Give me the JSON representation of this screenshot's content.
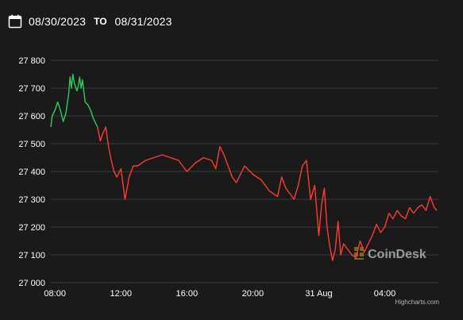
{
  "date_range": {
    "from": "08/30/2023",
    "to_label": "TO",
    "to": "08/31/2023",
    "icon": "calendar-icon"
  },
  "watermark": "CoinDesk",
  "credits": "Highcharts.com",
  "colors": {
    "background": "#1a1a1a",
    "gridline": "#3a3a3a",
    "up": "#2ecc5c",
    "down": "#ff3b30",
    "text": "#ffffff",
    "watermark_logo": "#c9a227"
  },
  "chart_data": {
    "type": "line",
    "title": "",
    "xlabel": "",
    "ylabel": "",
    "ylim": [
      27000,
      27800
    ],
    "yticks": [
      27000,
      27100,
      27200,
      27300,
      27400,
      27500,
      27600,
      27700,
      27800
    ],
    "ytick_labels": [
      "27 000",
      "27 100",
      "27 200",
      "27 300",
      "27 400",
      "27 500",
      "27 600",
      "27 700",
      "27 800"
    ],
    "xlim": [
      "2023-08-30 07:45",
      "2023-08-31 07:15"
    ],
    "xticks": [
      "2023-08-30 08:00",
      "2023-08-30 12:00",
      "2023-08-30 16:00",
      "2023-08-30 20:00",
      "2023-08-31 00:00",
      "2023-08-31 04:00"
    ],
    "xtick_labels": [
      "08:00",
      "12:00",
      "16:00",
      "20:00",
      "31 Aug",
      "04:00"
    ],
    "grid": true,
    "series": [
      {
        "color": "#2ecc5c",
        "x": [
          "2023-08-30 07:45",
          "2023-08-30 07:50",
          "2023-08-30 08:00",
          "2023-08-30 08:10",
          "2023-08-30 08:20",
          "2023-08-30 08:30",
          "2023-08-30 08:40",
          "2023-08-30 08:50",
          "2023-08-30 08:55",
          "2023-08-30 09:00",
          "2023-08-30 09:05",
          "2023-08-30 09:10",
          "2023-08-30 09:20",
          "2023-08-30 09:25",
          "2023-08-30 09:30",
          "2023-08-30 09:35",
          "2023-08-30 09:40",
          "2023-08-30 09:45",
          "2023-08-30 09:50",
          "2023-08-30 10:00",
          "2023-08-30 10:10",
          "2023-08-30 10:20",
          "2023-08-30 10:25",
          "2023-08-30 10:30",
          "2023-08-30 10:35"
        ],
        "y": [
          27560,
          27600,
          27620,
          27650,
          27620,
          27580,
          27610,
          27680,
          27740,
          27700,
          27750,
          27720,
          27690,
          27710,
          27740,
          27700,
          27730,
          27690,
          27650,
          27640,
          27620,
          27590,
          27580,
          27570,
          27560
        ]
      },
      {
        "color": "#ff3b30",
        "x": [
          "2023-08-30 10:35",
          "2023-08-30 10:45",
          "2023-08-30 10:55",
          "2023-08-30 11:05",
          "2023-08-30 11:15",
          "2023-08-30 11:25",
          "2023-08-30 11:35",
          "2023-08-30 11:45",
          "2023-08-30 12:00",
          "2023-08-30 12:15",
          "2023-08-30 12:30",
          "2023-08-30 12:45",
          "2023-08-30 13:00",
          "2023-08-30 13:15",
          "2023-08-30 13:30",
          "2023-08-30 14:00",
          "2023-08-30 14:30",
          "2023-08-30 15:00",
          "2023-08-30 15:30",
          "2023-08-30 16:00",
          "2023-08-30 16:30",
          "2023-08-30 17:00",
          "2023-08-30 17:30",
          "2023-08-30 17:45",
          "2023-08-30 18:00",
          "2023-08-30 18:15",
          "2023-08-30 18:30",
          "2023-08-30 18:45",
          "2023-08-30 19:00",
          "2023-08-30 19:30",
          "2023-08-30 20:00",
          "2023-08-30 20:30",
          "2023-08-30 21:00",
          "2023-08-30 21:30",
          "2023-08-30 21:45",
          "2023-08-30 22:00",
          "2023-08-30 22:15",
          "2023-08-30 22:30",
          "2023-08-30 22:45",
          "2023-08-30 23:00",
          "2023-08-30 23:15",
          "2023-08-30 23:30",
          "2023-08-30 23:45",
          "2023-08-31 00:00",
          "2023-08-31 00:10",
          "2023-08-31 00:20",
          "2023-08-31 00:30",
          "2023-08-31 00:40",
          "2023-08-31 00:50",
          "2023-08-31 01:00",
          "2023-08-31 01:10",
          "2023-08-31 01:20",
          "2023-08-31 01:30",
          "2023-08-31 01:45",
          "2023-08-31 02:00",
          "2023-08-31 02:15",
          "2023-08-31 02:30",
          "2023-08-31 02:45",
          "2023-08-31 03:00",
          "2023-08-31 03:15",
          "2023-08-31 03:30",
          "2023-08-31 03:45",
          "2023-08-31 04:00",
          "2023-08-31 04:15",
          "2023-08-31 04:30",
          "2023-08-31 04:45",
          "2023-08-31 05:00",
          "2023-08-31 05:15",
          "2023-08-31 05:30",
          "2023-08-31 05:45",
          "2023-08-31 06:00",
          "2023-08-31 06:15",
          "2023-08-31 06:30",
          "2023-08-31 06:45",
          "2023-08-31 07:00",
          "2023-08-31 07:10"
        ],
        "y": [
          27560,
          27510,
          27540,
          27560,
          27490,
          27440,
          27400,
          27380,
          27410,
          27300,
          27380,
          27420,
          27420,
          27430,
          27440,
          27450,
          27460,
          27450,
          27440,
          27400,
          27430,
          27450,
          27440,
          27410,
          27490,
          27460,
          27420,
          27380,
          27360,
          27420,
          27390,
          27370,
          27330,
          27310,
          27380,
          27340,
          27320,
          27300,
          27350,
          27420,
          27440,
          27300,
          27350,
          27170,
          27280,
          27340,
          27200,
          27130,
          27080,
          27120,
          27220,
          27100,
          27140,
          27120,
          27100,
          27090,
          27150,
          27110,
          27140,
          27170,
          27210,
          27180,
          27200,
          27250,
          27230,
          27260,
          27240,
          27230,
          27270,
          27250,
          27270,
          27280,
          27260,
          27310,
          27270,
          27260
        ]
      }
    ]
  }
}
